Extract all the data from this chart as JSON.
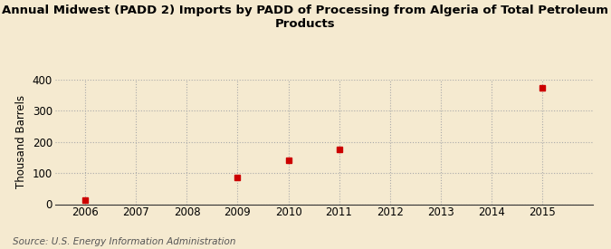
{
  "title": "Annual Midwest (PADD 2) Imports by PADD of Processing from Algeria of Total Petroleum\nProducts",
  "ylabel": "Thousand Barrels",
  "source_text": "Source: U.S. Energy Information Administration",
  "x_data": [
    2006,
    2009,
    2010,
    2011,
    2015
  ],
  "y_data": [
    14,
    85,
    140,
    175,
    375
  ],
  "x_ticks": [
    2006,
    2007,
    2008,
    2009,
    2010,
    2011,
    2012,
    2013,
    2014,
    2015
  ],
  "xlim": [
    2005.4,
    2016.0
  ],
  "ylim": [
    0,
    400
  ],
  "yticks": [
    0,
    100,
    200,
    300,
    400
  ],
  "marker_color": "#cc0000",
  "marker": "s",
  "marker_size": 4,
  "bg_color": "#f5ead0",
  "grid_color": "#aaaaaa",
  "title_fontsize": 9.5,
  "axis_fontsize": 8.5,
  "ylabel_fontsize": 8.5,
  "source_fontsize": 7.5
}
